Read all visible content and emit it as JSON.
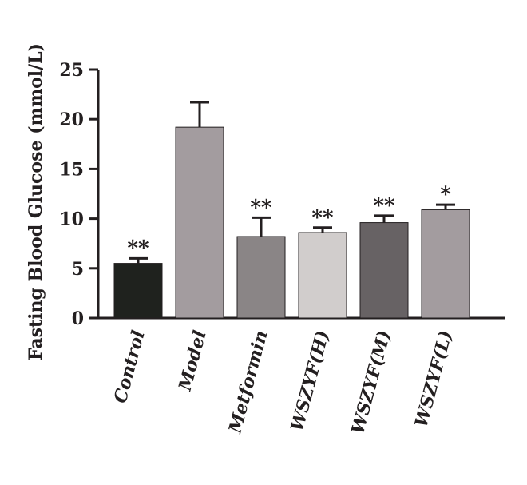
{
  "chart_data": {
    "type": "bar",
    "title": "",
    "xlabel": "",
    "ylabel": "Fasting Blood Glucose (mmol/L)",
    "ylim": [
      0,
      25
    ],
    "yticks": [
      "0",
      "5",
      "10",
      "15",
      "20",
      "25"
    ],
    "categories": [
      "Control",
      "Model",
      "Metformin",
      "WSZYF(H)",
      "WSZYF(M)",
      "WSZYF(L)"
    ],
    "values": [
      5.5,
      19.2,
      8.2,
      8.6,
      9.6,
      10.9
    ],
    "errors": [
      0.5,
      2.5,
      1.9,
      0.5,
      0.7,
      0.5
    ],
    "significance": [
      "**",
      "",
      "**",
      "**",
      "**",
      "*"
    ],
    "bar_colors": [
      "#1f221e",
      "#a39c9f",
      "#8a8586",
      "#d1cdcc",
      "#676264",
      "#a39c9f"
    ],
    "grid": false,
    "legend": "none"
  }
}
